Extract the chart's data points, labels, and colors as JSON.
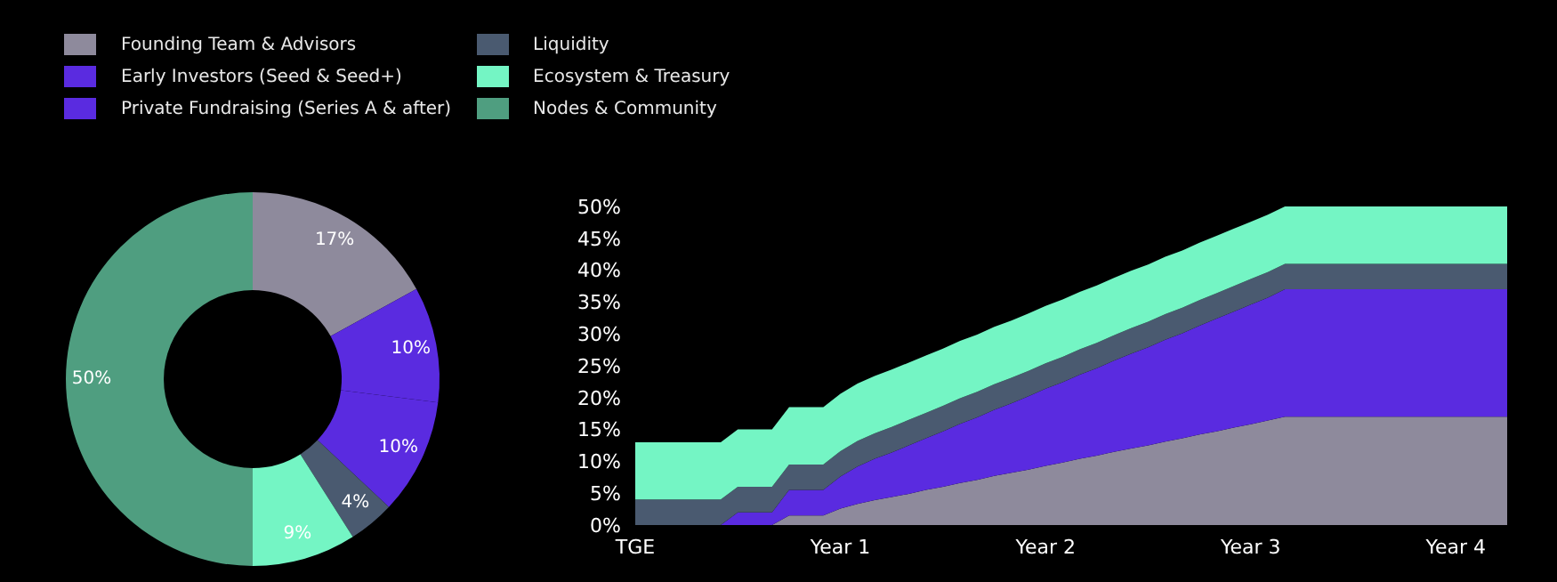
{
  "chart_data": [
    {
      "type": "donut",
      "categories": [
        "Founding Team & Advisors",
        "Early Investors (Seed & Seed+)",
        "Private Fundraising (Series A & after)",
        "Liquidity",
        "Ecosystem & Treasury",
        "Nodes & Community"
      ],
      "values": [
        17,
        10,
        10,
        4,
        9,
        50
      ],
      "colors": [
        "#8e8a9c",
        "#5a2be0",
        "#5a2be0",
        "#4a5a70",
        "#74f5c4",
        "#4f9e80"
      ],
      "value_labels": [
        "17%",
        "10%",
        "10%",
        "4%",
        "9%",
        "50%"
      ],
      "legend": "top"
    },
    {
      "type": "area",
      "stacked": true,
      "categories": [
        "TGE",
        null,
        null,
        null,
        null,
        null,
        null,
        null,
        null,
        null,
        null,
        null,
        "Year 1",
        null,
        null,
        null,
        null,
        null,
        null,
        null,
        null,
        null,
        null,
        null,
        "Year 2",
        null,
        null,
        null,
        null,
        null,
        null,
        null,
        null,
        null,
        null,
        null,
        "Year 3",
        null,
        null,
        null,
        null,
        null,
        null,
        null,
        null,
        null,
        null,
        null,
        "Year 4",
        null,
        null,
        null
      ],
      "series": [
        {
          "color": "#8e8a9c",
          "values": [
            0,
            0,
            0,
            0,
            0,
            0,
            0,
            0,
            0,
            1.5,
            1.5,
            1.5,
            2.6,
            3.3,
            3.9,
            4.4,
            4.9,
            5.5,
            6.0,
            6.6,
            7.1,
            7.7,
            8.2,
            8.7,
            9.3,
            9.8,
            10.4,
            10.9,
            11.5,
            12.0,
            12.5,
            13.1,
            13.6,
            14.2,
            14.7,
            15.3,
            15.8,
            16.4,
            17,
            17,
            17,
            17,
            17,
            17,
            17,
            17,
            17,
            17,
            17,
            17,
            17,
            17
          ]
        },
        {
          "color": "#5a2be0",
          "values": [
            0,
            0,
            0,
            0,
            0,
            0,
            2,
            2,
            2,
            4,
            4,
            4,
            5,
            5.9,
            6.5,
            7.0,
            7.6,
            8.1,
            8.7,
            9.3,
            9.8,
            10.4,
            10.9,
            11.5,
            12.1,
            12.6,
            13.2,
            13.7,
            14.3,
            14.9,
            15.4,
            16.0,
            16.5,
            17.1,
            17.7,
            18.2,
            18.8,
            19.3,
            20,
            20,
            20,
            20,
            20,
            20,
            20,
            20,
            20,
            20,
            20,
            20,
            20,
            20
          ]
        },
        {
          "color": "#4a5a70",
          "values": [
            4,
            4,
            4,
            4,
            4,
            4,
            4,
            4,
            4,
            4,
            4,
            4,
            4,
            4,
            4,
            4,
            4,
            4,
            4,
            4,
            4,
            4,
            4,
            4,
            4,
            4,
            4,
            4,
            4,
            4,
            4,
            4,
            4,
            4,
            4,
            4,
            4,
            4,
            4,
            4,
            4,
            4,
            4,
            4,
            4,
            4,
            4,
            4,
            4,
            4,
            4,
            4
          ]
        },
        {
          "color": "#74f5c4",
          "values": [
            9,
            9,
            9,
            9,
            9,
            9,
            9,
            9,
            9,
            9,
            9,
            9,
            9,
            9,
            9,
            9,
            9,
            9,
            9,
            9,
            9,
            9,
            9,
            9,
            9,
            9,
            9,
            9,
            9,
            9,
            9,
            9,
            9,
            9,
            9,
            9,
            9,
            9,
            9,
            9,
            9,
            9,
            9,
            9,
            9,
            9,
            9,
            9,
            9,
            9,
            9,
            9
          ]
        }
      ],
      "ylim": [
        0,
        50
      ],
      "yticks": [
        {
          "value": 0,
          "label": "0%"
        },
        {
          "value": 5,
          "label": "5%"
        },
        {
          "value": 10,
          "label": "10%"
        },
        {
          "value": 15,
          "label": "15%"
        },
        {
          "value": 20,
          "label": "20%"
        },
        {
          "value": 25,
          "label": "25%"
        },
        {
          "value": 30,
          "label": "30%"
        },
        {
          "value": 35,
          "label": "35%"
        },
        {
          "value": 40,
          "label": "40%"
        },
        {
          "value": 45,
          "label": "45%"
        },
        {
          "value": 50,
          "label": "50%"
        }
      ],
      "grid": false
    }
  ]
}
